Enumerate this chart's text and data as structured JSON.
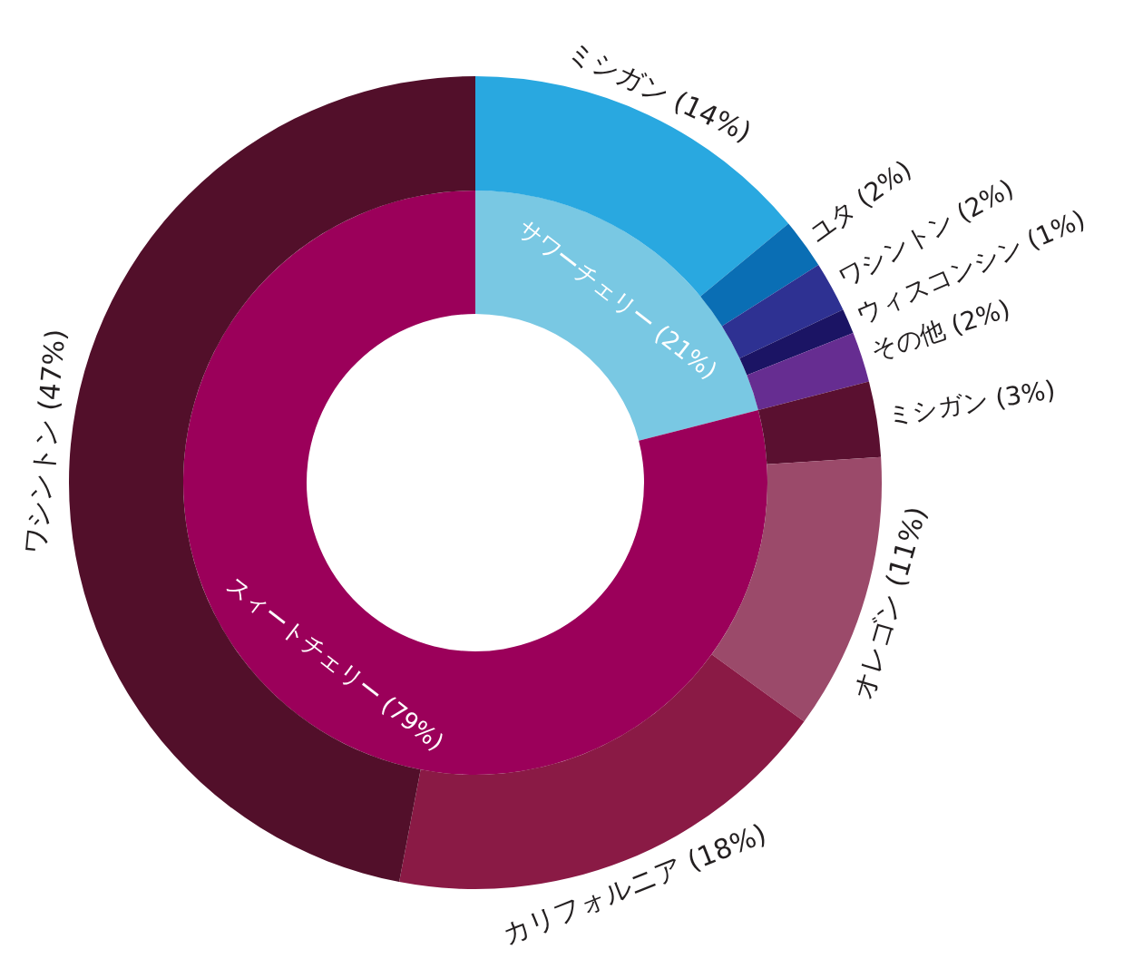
{
  "chart_data": [
    {
      "type": "donut",
      "categories": [
        "サワーチェリー (21%)",
        "スィートチェリー (79%)"
      ],
      "values": [
        21,
        79
      ],
      "colors": [
        "#79c8e3",
        "#9b005a"
      ]
    },
    {
      "type": "donut",
      "categories": [
        "ミシガン (14%)",
        "ユタ (2%)",
        "ワシントン (2%)",
        "ウィスコンシン (1%)",
        "その他 (2%)",
        "ミシガン (3%)",
        "オレゴン (11%)",
        "カリフォルニア (18%)",
        "ワシントン (47%)"
      ],
      "values": [
        14,
        2,
        2,
        1,
        2,
        3,
        11,
        18,
        47
      ],
      "colors": [
        "#29a8e0",
        "#0a6eb4",
        "#2e3192",
        "#1b1464",
        "#662d91",
        "#5a1030",
        "#9b4a6a",
        "#8a1a45",
        "#520f2a"
      ]
    }
  ]
}
